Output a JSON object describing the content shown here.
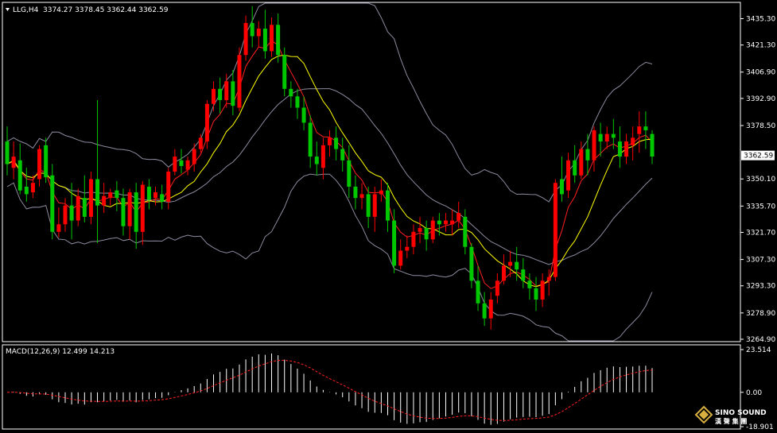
{
  "header": {
    "symbol": "LLG,H4",
    "ohlc": "3374.27 3378.45 3362.44 3362.59"
  },
  "macd_header": "MACD(12,26,9) 12.499 14.213",
  "watermark": {
    "brand": "SINO SOUND",
    "cn": "漢 聲 集 團"
  },
  "colors": {
    "background": "#000000",
    "frame": "#ffffff",
    "bull": "#ff0000",
    "bear": "#00c800",
    "bollinger": "#8c8ca0",
    "ma_fast": "#ff2020",
    "ma_slow": "#ffff00",
    "macd_hist": "#ffffff",
    "macd_signal": "#ff2020",
    "price_tag_bg": "#ffffff",
    "price_tag_text": "#000000"
  },
  "chart_data": {
    "type": "candlestick",
    "price_axis": {
      "ticks": [
        "3435.30",
        "3421.30",
        "3406.90",
        "3392.90",
        "3378.50",
        "3350.10",
        "3335.70",
        "3321.70",
        "3307.30",
        "3293.30",
        "3278.90",
        "3264.90"
      ],
      "range": [
        3264.9,
        3441
      ],
      "current_price": "3362.59"
    },
    "macd_axis": {
      "ticks": [
        "23.514",
        "0.00",
        "-18.901"
      ],
      "range": [
        -18.901,
        23.514
      ]
    },
    "candles": [
      [
        3370,
        3378,
        3358,
        3352
      ],
      [
        3356,
        3370,
        3362,
        3350
      ],
      [
        3360,
        3369,
        3344,
        3342
      ],
      [
        3346,
        3356,
        3342,
        3338
      ],
      [
        3343,
        3352,
        3348,
        3340
      ],
      [
        3350,
        3368,
        3366,
        3346
      ],
      [
        3368,
        3372,
        3351,
        3348
      ],
      [
        3352,
        3358,
        3322,
        3318
      ],
      [
        3322,
        3335,
        3326,
        3319
      ],
      [
        3326,
        3340,
        3336,
        3322
      ],
      [
        3336,
        3348,
        3328,
        3318
      ],
      [
        3328,
        3345,
        3341,
        3325
      ],
      [
        3340,
        3352,
        3330,
        3327
      ],
      [
        3330,
        3354,
        3350,
        3326
      ],
      [
        3350,
        3392,
        3336,
        3316
      ],
      [
        3336,
        3348,
        3341,
        3332
      ],
      [
        3340,
        3345,
        3343,
        3336
      ],
      [
        3344,
        3349,
        3340,
        3333
      ],
      [
        3340,
        3345,
        3325,
        3320
      ],
      [
        3325,
        3345,
        3343,
        3318
      ],
      [
        3343,
        3348,
        3322,
        3313
      ],
      [
        3322,
        3349,
        3347,
        3315
      ],
      [
        3346,
        3350,
        3339,
        3334
      ],
      [
        3340,
        3346,
        3343,
        3336
      ],
      [
        3342,
        3347,
        3338,
        3334
      ],
      [
        3338,
        3356,
        3354,
        3334
      ],
      [
        3354,
        3366,
        3362,
        3352
      ],
      [
        3360,
        3366,
        3357,
        3353
      ],
      [
        3355,
        3362,
        3360,
        3352
      ],
      [
        3358,
        3369,
        3366,
        3354
      ],
      [
        3366,
        3374,
        3372,
        3364
      ],
      [
        3370,
        3392,
        3390,
        3366
      ],
      [
        3390,
        3402,
        3398,
        3386
      ],
      [
        3398,
        3404,
        3392,
        3385
      ],
      [
        3392,
        3406,
        3402,
        3388
      ],
      [
        3402,
        3408,
        3389,
        3384
      ],
      [
        3388,
        3420,
        3416,
        3386
      ],
      [
        3416,
        3437,
        3433,
        3413
      ],
      [
        3433,
        3442,
        3426,
        3420
      ],
      [
        3426,
        3434,
        3430,
        3420
      ],
      [
        3430,
        3440,
        3418,
        3414
      ],
      [
        3418,
        3436,
        3432,
        3415
      ],
      [
        3432,
        3438,
        3416,
        3412
      ],
      [
        3416,
        3420,
        3398,
        3394
      ],
      [
        3398,
        3402,
        3394,
        3388
      ],
      [
        3394,
        3398,
        3388,
        3382
      ],
      [
        3388,
        3394,
        3380,
        3376
      ],
      [
        3380,
        3384,
        3362,
        3356
      ],
      [
        3362,
        3370,
        3358,
        3352
      ],
      [
        3356,
        3372,
        3368,
        3350
      ],
      [
        3368,
        3376,
        3372,
        3362
      ],
      [
        3372,
        3378,
        3366,
        3360
      ],
      [
        3366,
        3372,
        3360,
        3354
      ],
      [
        3360,
        3368,
        3346,
        3340
      ],
      [
        3346,
        3352,
        3340,
        3334
      ],
      [
        3340,
        3348,
        3342,
        3334
      ],
      [
        3342,
        3346,
        3330,
        3324
      ],
      [
        3330,
        3346,
        3342,
        3322
      ],
      [
        3342,
        3350,
        3344,
        3338
      ],
      [
        3344,
        3348,
        3328,
        3322
      ],
      [
        3328,
        3334,
        3304,
        3300
      ],
      [
        3304,
        3318,
        3312,
        3302
      ],
      [
        3312,
        3320,
        3314,
        3308
      ],
      [
        3314,
        3326,
        3322,
        3310
      ],
      [
        3322,
        3330,
        3324,
        3316
      ],
      [
        3324,
        3328,
        3318,
        3312
      ],
      [
        3318,
        3330,
        3328,
        3316
      ],
      [
        3328,
        3332,
        3326,
        3320
      ],
      [
        3326,
        3332,
        3328,
        3322
      ],
      [
        3326,
        3334,
        3328,
        3320
      ],
      [
        3328,
        3338,
        3332,
        3324
      ],
      [
        3330,
        3334,
        3314,
        3310
      ],
      [
        3314,
        3316,
        3296,
        3292
      ],
      [
        3296,
        3304,
        3284,
        3280
      ],
      [
        3284,
        3290,
        3276,
        3272
      ],
      [
        3276,
        3290,
        3286,
        3270
      ],
      [
        3288,
        3300,
        3296,
        3284
      ],
      [
        3296,
        3310,
        3304,
        3294
      ],
      [
        3304,
        3312,
        3306,
        3298
      ],
      [
        3306,
        3314,
        3302,
        3296
      ],
      [
        3302,
        3308,
        3296,
        3292
      ],
      [
        3296,
        3300,
        3292,
        3286
      ],
      [
        3292,
        3298,
        3286,
        3280
      ],
      [
        3286,
        3300,
        3296,
        3282
      ],
      [
        3296,
        3302,
        3298,
        3288
      ],
      [
        3298,
        3350,
        3348,
        3296
      ],
      [
        3350,
        3362,
        3342,
        3338
      ],
      [
        3344,
        3364,
        3360,
        3340
      ],
      [
        3360,
        3368,
        3352,
        3348
      ],
      [
        3352,
        3370,
        3366,
        3350
      ],
      [
        3366,
        3374,
        3360,
        3352
      ],
      [
        3360,
        3378,
        3376,
        3354
      ],
      [
        3374,
        3380,
        3370,
        3362
      ],
      [
        3370,
        3378,
        3374,
        3366
      ],
      [
        3374,
        3382,
        3372,
        3366
      ],
      [
        3370,
        3378,
        3362,
        3356
      ],
      [
        3362,
        3374,
        3370,
        3358
      ],
      [
        3368,
        3378,
        3372,
        3360
      ],
      [
        3374,
        3386,
        3378,
        3364
      ],
      [
        3378,
        3386,
        3376,
        3366
      ],
      [
        3374,
        3376,
        3362,
        3358
      ]
    ]
  }
}
